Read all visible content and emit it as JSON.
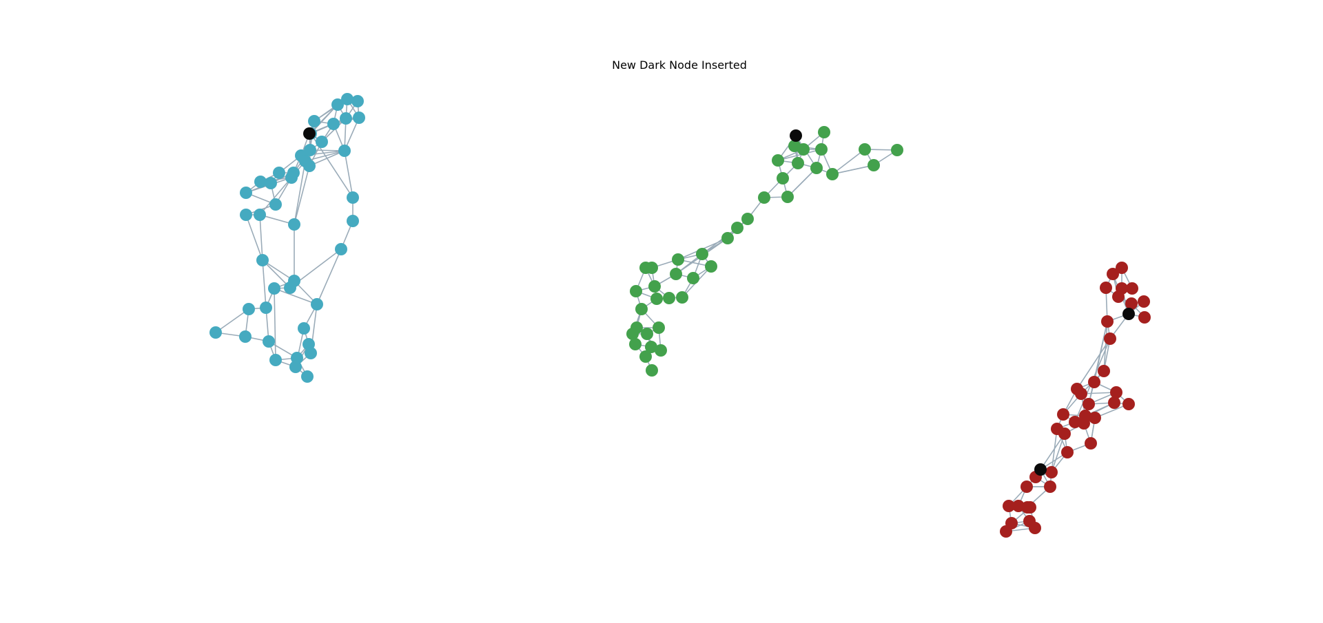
{
  "title": "New Dark Node Inserted",
  "colors": {
    "edge": "#9aabb8",
    "highlight_edge": "#8b1a1a",
    "dark_node": "#0a0a0a",
    "cluster_teal": "#45aac0",
    "cluster_green": "#43a14c",
    "cluster_red": "#a5201e"
  },
  "graph": {
    "clusters": [
      {
        "name": "teal",
        "color_key": "cluster_teal",
        "dark_node_count": 1,
        "node_count": 51
      },
      {
        "name": "green",
        "color_key": "cluster_green",
        "dark_node_count": 1,
        "node_count": 41
      },
      {
        "name": "red",
        "color_key": "cluster_red",
        "dark_node_count": 2,
        "node_count": 44
      }
    ]
  }
}
